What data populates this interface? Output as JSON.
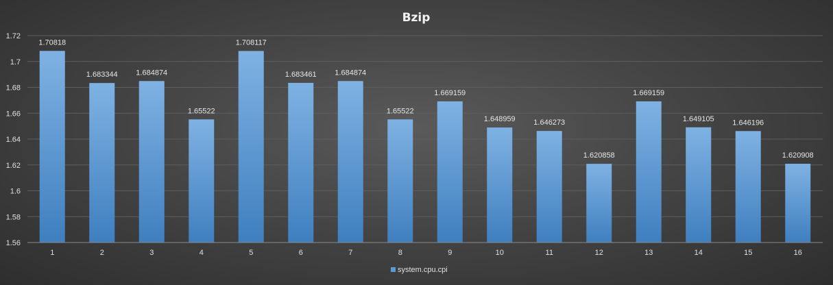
{
  "chart_data": {
    "type": "bar",
    "title": "Bzip",
    "xlabel": "",
    "ylabel": "",
    "categories": [
      "1",
      "2",
      "3",
      "4",
      "5",
      "6",
      "7",
      "8",
      "9",
      "10",
      "11",
      "12",
      "13",
      "14",
      "15",
      "16"
    ],
    "series": [
      {
        "name": "system.cpu.cpi",
        "values": [
          1.70818,
          1.683344,
          1.684874,
          1.65522,
          1.708117,
          1.683461,
          1.684874,
          1.65522,
          1.669159,
          1.648959,
          1.646273,
          1.620858,
          1.669159,
          1.649105,
          1.646196,
          1.620908
        ],
        "labels": [
          "1.70818",
          "1.683344",
          "1.684874",
          "1.65522",
          "1.708117",
          "1.683461",
          "1.684874",
          "1.65522",
          "1.669159",
          "1.648959",
          "1.646273",
          "1.620858",
          "1.669159",
          "1.649105",
          "1.646196",
          "1.620908"
        ]
      }
    ],
    "ylim": [
      1.56,
      1.72
    ],
    "yticks": [
      "1.56",
      "1.58",
      "1.6",
      "1.62",
      "1.64",
      "1.66",
      "1.68",
      "1.7",
      "1.72"
    ],
    "grid": true,
    "legend": "bottom",
    "colors": {
      "bar": "#5b9bd5",
      "bar_light": "#7fb2e3",
      "bar_dark": "#3f7fbf"
    }
  }
}
